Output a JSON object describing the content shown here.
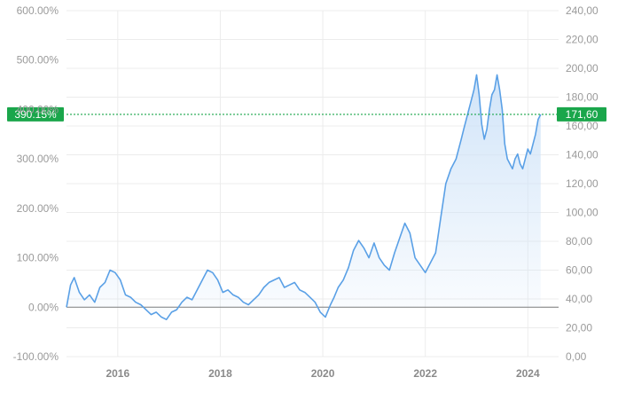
{
  "chart_data": {
    "type": "area",
    "title": "",
    "xlabel": "",
    "ylabel": "",
    "x_ticks": [
      "2016",
      "2018",
      "2020",
      "2022",
      "2024"
    ],
    "y_left_ticks": [
      "600.00%",
      "500.00%",
      "400.00%",
      "300.00%",
      "200.00%",
      "100.00%",
      "0.00%",
      "-100.00%"
    ],
    "y_right_ticks": [
      "240,00",
      "220,00",
      "200,00",
      "180,00",
      "160,00",
      "140,00",
      "120,00",
      "100,00",
      "80,00",
      "60,00",
      "40,00",
      "20,00",
      "0,00"
    ],
    "ylim_left": [
      -100,
      600
    ],
    "ylim_right": [
      0,
      240
    ],
    "xlim": [
      2015.0,
      2024.6
    ],
    "grid": true,
    "current_percent_label": "390.15%",
    "current_price_label": "171,60",
    "current_percent": 390.15,
    "current_price": 171.6,
    "line_color": "#5aa0e6",
    "fill_color": "#cfe3f8",
    "badge_color": "#1aa64b",
    "series": [
      {
        "x": [
          2015.0,
          2015.08,
          2015.15,
          2015.25,
          2015.35,
          2015.45,
          2015.55,
          2015.65,
          2015.75,
          2015.85,
          2015.95,
          2016.05,
          2016.15,
          2016.25,
          2016.35,
          2016.45,
          2016.55,
          2016.65,
          2016.75,
          2016.85,
          2016.95,
          2017.05,
          2017.15,
          2017.25,
          2017.35,
          2017.45,
          2017.55,
          2017.65,
          2017.75,
          2017.85,
          2017.95,
          2018.05,
          2018.15,
          2018.25,
          2018.35,
          2018.45,
          2018.55,
          2018.65,
          2018.75,
          2018.85,
          2018.95,
          2019.05,
          2019.15,
          2019.25,
          2019.35,
          2019.45,
          2019.55,
          2019.65,
          2019.75,
          2019.85,
          2019.95,
          2020.05,
          2020.15,
          2020.22,
          2020.3,
          2020.4,
          2020.5,
          2020.6,
          2020.7,
          2020.8,
          2020.9,
          2021.0,
          2021.1,
          2021.2,
          2021.3,
          2021.4,
          2021.5,
          2021.6,
          2021.7,
          2021.8,
          2021.9,
          2022.0,
          2022.1,
          2022.2,
          2022.3,
          2022.4,
          2022.5,
          2022.6,
          2022.7,
          2022.75,
          2022.8,
          2022.85,
          2022.9,
          2022.95,
          2023.0,
          2023.05,
          2023.1,
          2023.15,
          2023.2,
          2023.25,
          2023.3,
          2023.35,
          2023.4,
          2023.45,
          2023.5,
          2023.55,
          2023.6,
          2023.65,
          2023.7,
          2023.75,
          2023.8,
          2023.85,
          2023.9,
          2023.95,
          2024.0,
          2024.05,
          2024.1,
          2024.15,
          2024.2,
          2024.25
        ],
        "values": [
          0,
          45,
          60,
          30,
          15,
          25,
          10,
          40,
          50,
          75,
          70,
          55,
          25,
          20,
          10,
          5,
          -5,
          -15,
          -10,
          -20,
          -25,
          -10,
          -5,
          10,
          20,
          15,
          35,
          55,
          75,
          70,
          55,
          30,
          35,
          25,
          20,
          10,
          5,
          15,
          25,
          40,
          50,
          55,
          60,
          40,
          45,
          50,
          35,
          30,
          20,
          10,
          -10,
          -20,
          5,
          20,
          40,
          55,
          80,
          115,
          135,
          120,
          100,
          130,
          100,
          85,
          75,
          110,
          140,
          170,
          150,
          100,
          85,
          70,
          90,
          110,
          180,
          250,
          280,
          300,
          340,
          360,
          380,
          400,
          420,
          440,
          470,
          430,
          370,
          340,
          360,
          400,
          430,
          440,
          470,
          440,
          400,
          330,
          300,
          290,
          280,
          300,
          310,
          290,
          280,
          300,
          320,
          310,
          330,
          350,
          380,
          390
        ]
      }
    ]
  }
}
